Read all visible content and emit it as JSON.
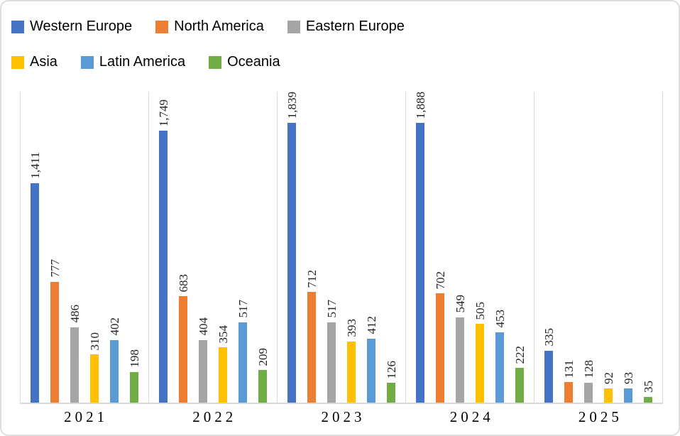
{
  "chart_data": {
    "type": "bar",
    "title": "",
    "xlabel": "",
    "ylabel": "",
    "categories": [
      "2021",
      "2022",
      "2023",
      "2024",
      "2025"
    ],
    "series": [
      {
        "name": "Western Europe",
        "color": "#4472C4",
        "values": [
          1411,
          1749,
          1839,
          1888,
          335
        ],
        "labels": [
          "1,411",
          "1,749",
          "1,839",
          "1,888",
          "335"
        ]
      },
      {
        "name": "North America",
        "color": "#ED7D31",
        "values": [
          777,
          683,
          712,
          702,
          131
        ],
        "labels": [
          "777",
          "683",
          "712",
          "702",
          "131"
        ]
      },
      {
        "name": "Eastern Europe",
        "color": "#A5A5A5",
        "values": [
          486,
          404,
          517,
          549,
          128
        ],
        "labels": [
          "486",
          "404",
          "517",
          "549",
          "128"
        ]
      },
      {
        "name": "Asia",
        "color": "#FFC000",
        "values": [
          310,
          354,
          393,
          505,
          92
        ],
        "labels": [
          "310",
          "354",
          "393",
          "505",
          "92"
        ]
      },
      {
        "name": "Latin America",
        "color": "#5B9BD5",
        "values": [
          402,
          517,
          412,
          453,
          93
        ],
        "labels": [
          "402",
          "517",
          "412",
          "453",
          "93"
        ]
      },
      {
        "name": "Oceania",
        "color": "#70AD47",
        "values": [
          198,
          209,
          126,
          222,
          35
        ],
        "labels": [
          "198",
          "209",
          "126",
          "222",
          "35"
        ]
      }
    ],
    "ylim": [
      0,
      2000
    ],
    "grid": "vertical category separators only, no horizontal gridlines, no y-axis",
    "legend_position": "top-left",
    "legend_row_split": 3,
    "data_labels": "rotated 90deg, bottom-to-top, above each bar",
    "axis_line_color": "#D9D9D9",
    "label_text_color": "#262626"
  }
}
